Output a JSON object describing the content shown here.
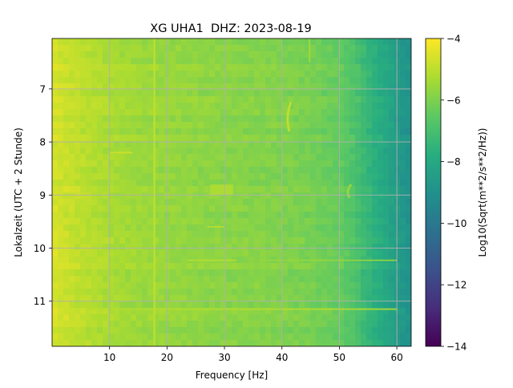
{
  "chart_data": {
    "type": "heatmap",
    "title": "XG UHA1  DHZ: 2023-08-19",
    "xlabel": "Frequency [Hz]",
    "ylabel": "Lokalzeit (UTC + 2 Stunde)",
    "colorbar_label": "Log10(Sqrt(m**2/s**2/Hz))",
    "colormap": "viridis",
    "xlim": [
      0,
      62.5
    ],
    "ylim": [
      11.85,
      6.05
    ],
    "y_inverted": true,
    "x_ticks": [
      10,
      20,
      30,
      40,
      50,
      60
    ],
    "x_tick_labels": [
      "10",
      "20",
      "30",
      "40",
      "50",
      "60"
    ],
    "y_ticks": [
      7,
      8,
      9,
      10,
      11
    ],
    "y_tick_labels": [
      "7",
      "8",
      "9",
      "10",
      "11"
    ],
    "colorbar_range": [
      -14,
      -4
    ],
    "colorbar_ticks": [
      -4,
      -6,
      -8,
      -10,
      -12,
      -14
    ],
    "colorbar_tick_labels": [
      "−4",
      "−6",
      "−8",
      "−10",
      "−12",
      "−14"
    ],
    "grid": true,
    "spectral_level_profile": {
      "frequency_hz": [
        0,
        5,
        10,
        15,
        20,
        25,
        30,
        35,
        40,
        45,
        50,
        52,
        55,
        58,
        60,
        62.5
      ],
      "log10_level": [
        -4.6,
        -5.0,
        -5.3,
        -5.5,
        -5.6,
        -5.7,
        -5.8,
        -5.85,
        -5.95,
        -6.1,
        -6.4,
        -6.7,
        -7.4,
        -8.0,
        -8.5,
        -9.0
      ]
    },
    "notable_features": [
      {
        "frequency_hz": 17.8,
        "time_from": 6.05,
        "time_to": 11.85,
        "kind": "vertical line"
      },
      {
        "frequency_hz": 41.0,
        "time_from": 7.25,
        "time_to": 7.8,
        "kind": "arc"
      },
      {
        "frequency_hz": 44.8,
        "time_from": 6.05,
        "time_to": 6.5,
        "kind": "vertical line"
      },
      {
        "frequency_hz": 29.5,
        "time_from": 8.8,
        "time_to": 9.0,
        "kind": "patch"
      },
      {
        "frequency_hz": 51.5,
        "time_from": 8.8,
        "time_to": 9.05,
        "kind": "arc"
      },
      {
        "frequency_from": 23.5,
        "frequency_to": 32,
        "time": 10.23,
        "kind": "horizontal streak"
      },
      {
        "frequency_from": 27,
        "frequency_to": 30,
        "time": 9.6,
        "kind": "horizontal streak"
      },
      {
        "frequency_from": 36,
        "frequency_to": 60,
        "time": 10.23,
        "kind": "horizontal streak"
      },
      {
        "frequency_from": 10,
        "frequency_to": 14,
        "time": 8.2,
        "kind": "horizontal streak"
      },
      {
        "frequency_from": 6,
        "frequency_to": 60,
        "time": 11.15,
        "kind": "horizontal streak"
      }
    ]
  }
}
